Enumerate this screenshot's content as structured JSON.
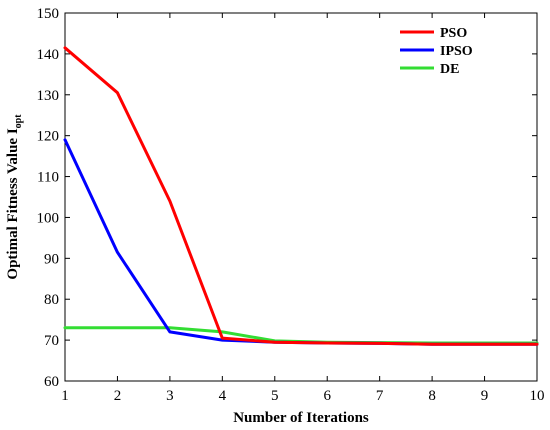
{
  "chart_data": {
    "type": "line",
    "title": "",
    "xlabel": "Number of Iterations",
    "ylabel": {
      "main": "Optimal Fitness Value I",
      "subscript": "opt"
    },
    "x": [
      1,
      2,
      3,
      4,
      5,
      6,
      7,
      8,
      9,
      10
    ],
    "xlim": [
      1,
      10
    ],
    "ylim": [
      60,
      150
    ],
    "xticks": [
      "1",
      "2",
      "3",
      "4",
      "5",
      "6",
      "7",
      "8",
      "9",
      "10"
    ],
    "yticks": [
      "60",
      "70",
      "80",
      "90",
      "100",
      "110",
      "120",
      "130",
      "140",
      "150"
    ],
    "grid": false,
    "legend_position": "top-right",
    "series": [
      {
        "name": "PSO",
        "color": "#ff0000",
        "values": [
          141.5,
          130.5,
          104,
          70.5,
          69.5,
          69.3,
          69.2,
          69.0,
          69.0,
          69.0
        ]
      },
      {
        "name": "IPSO",
        "color": "#0000ff",
        "values": [
          119,
          91.5,
          72.0,
          70.0,
          69.5,
          69.3,
          69.2,
          69.0,
          69.0,
          69.0
        ]
      },
      {
        "name": "DE",
        "color": "#33dd33",
        "values": [
          73.0,
          73.0,
          73.0,
          72.0,
          69.8,
          69.5,
          69.4,
          69.3,
          69.3,
          69.3
        ]
      }
    ]
  }
}
